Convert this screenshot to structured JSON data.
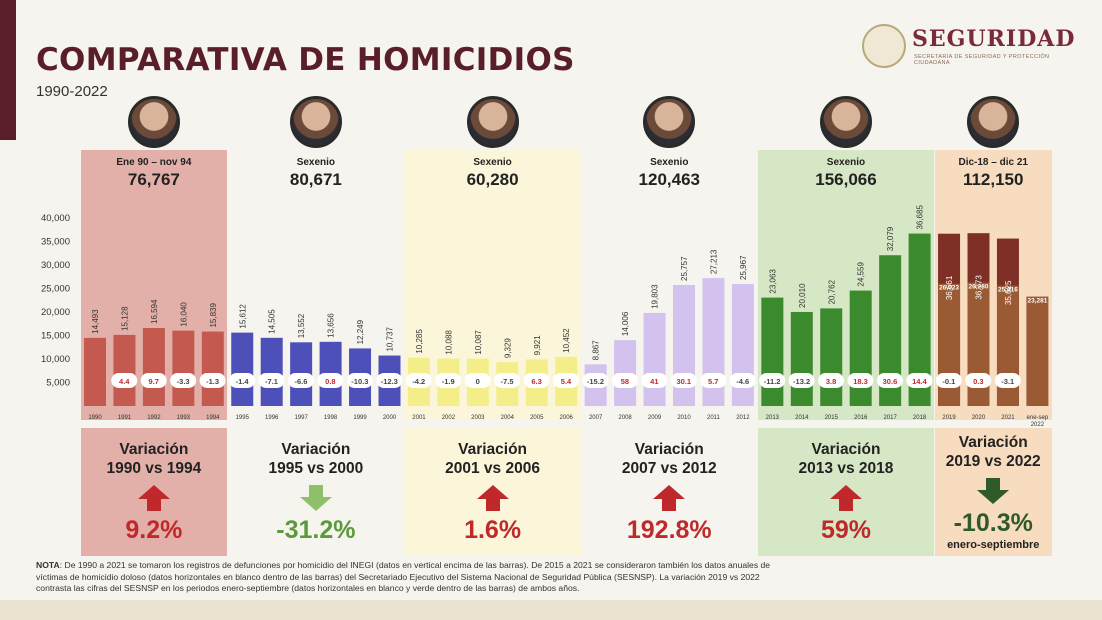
{
  "header": {
    "title": "COMPARATIVA DE HOMICIDIOS",
    "subtitle": "1990-2022",
    "logo_title": "SEGURIDAD",
    "logo_subtitle": "SECRETARÍA DE SEGURIDAD Y PROTECCIÓN CIUDADANA"
  },
  "periods": [
    {
      "label": "Ene 90 – nov 94",
      "total": "76,767",
      "variation_title_1": "Variación",
      "variation_title_2": "1990 vs 1994",
      "variation_value": "9.2%",
      "variation_direction": "up",
      "band_color": "#e2b0a8",
      "value_color": "#c0292b"
    },
    {
      "label": "Sexenio",
      "total": "80,671",
      "variation_title_1": "Variación",
      "variation_title_2": "1995 vs 2000",
      "variation_value": "-31.2%",
      "variation_direction": "down",
      "band_color": "#f6f4ee",
      "value_color": "#5a9a3a"
    },
    {
      "label": "Sexenio",
      "total": "60,280",
      "variation_title_1": "Variación",
      "variation_title_2": "2001 vs 2006",
      "variation_value": "1.6%",
      "variation_direction": "up",
      "band_color": "#fbf6d9",
      "value_color": "#c0292b"
    },
    {
      "label": "Sexenio",
      "total": "120,463",
      "variation_title_1": "Variación",
      "variation_title_2": "2007 vs 2012",
      "variation_value": "192.8%",
      "variation_direction": "up",
      "band_color": "#f6f4ee",
      "value_color": "#c0292b"
    },
    {
      "label": "Sexenio",
      "total": "156,066",
      "variation_title_1": "Variación",
      "variation_title_2": "2013 vs 2018",
      "variation_value": "59%",
      "variation_direction": "up",
      "band_color": "#d6e7c5",
      "value_color": "#c0292b"
    },
    {
      "label": "Dic-18 – dic 21",
      "total": "112,150",
      "variation_title_1": "Variación",
      "variation_title_2": "2019 vs 2022",
      "variation_value": "-10.3%",
      "variation_direction": "down",
      "variation_note": "enero-septiembre",
      "band_color": "#f8dcbf",
      "value_color": "#2f5a2a"
    }
  ],
  "chart_data": {
    "type": "bar",
    "y_ticks": [
      "40,000",
      "35,000",
      "30,000",
      "25,000",
      "20,000",
      "15,000",
      "10,000",
      "5,000"
    ],
    "ylim": [
      0,
      40000
    ],
    "categories": [
      "1990",
      "1991",
      "1992",
      "1993",
      "1994",
      "1995",
      "1996",
      "1997",
      "1998",
      "1999",
      "2000",
      "2001",
      "2002",
      "2003",
      "2004",
      "2005",
      "2006",
      "2007",
      "2008",
      "2009",
      "2010",
      "2011",
      "2012",
      "2013",
      "2014",
      "2015",
      "2016",
      "2017",
      "2018",
      "2019",
      "2020",
      "2021",
      "ene-sep 2022"
    ],
    "values": [
      14493,
      15128,
      16594,
      16040,
      15839,
      15612,
      14505,
      13552,
      13656,
      12249,
      10737,
      10285,
      10088,
      10087,
      9329,
      9921,
      10452,
      8867,
      14006,
      19803,
      25757,
      27213,
      25967,
      23063,
      20010,
      20762,
      24559,
      32079,
      36685,
      36661,
      36773,
      35625,
      null
    ],
    "value_labels": [
      "14,493",
      "15,128",
      "16,594",
      "16,040",
      "15,839",
      "15,612",
      "14,505",
      "13,552",
      "13,656",
      "12,249",
      "10,737",
      "10,285",
      "10,088",
      "10,087",
      "9,329",
      "9,921",
      "10,452",
      "8,867",
      "14,006",
      "19,803",
      "25,757",
      "27,213",
      "25,967",
      "23,063",
      "20,010",
      "20,762",
      "24,559",
      "32,079",
      "36,685",
      "36,661",
      "36,773",
      "35,625",
      ""
    ],
    "inner_labels": [
      null,
      null,
      null,
      null,
      null,
      null,
      null,
      null,
      null,
      null,
      null,
      null,
      null,
      null,
      null,
      null,
      null,
      null,
      null,
      null,
      null,
      null,
      null,
      null,
      null,
      null,
      null,
      null,
      null,
      "26,023",
      "26,280",
      "25,616",
      "23,281"
    ],
    "inner_values": [
      null,
      null,
      null,
      null,
      null,
      null,
      null,
      null,
      null,
      null,
      null,
      null,
      null,
      null,
      null,
      null,
      null,
      null,
      null,
      null,
      null,
      null,
      null,
      null,
      null,
      null,
      null,
      null,
      null,
      26023,
      26280,
      25616,
      23281
    ],
    "annual_variation": [
      "",
      "4.4",
      "9.7",
      "-3.3",
      "-1.3",
      "-1.4",
      "-7.1",
      "-6.6",
      "0.8",
      "-10.3",
      "-12.3",
      "-4.2",
      "-1.9",
      "0",
      "-7.5",
      "6.3",
      "5.4",
      "-15.2",
      "58",
      "41",
      "30.1",
      "5.7",
      "-4.6",
      "-11.2",
      "-13.2",
      "3.8",
      "18.3",
      "30.6",
      "14.4",
      "-0.1",
      "0.3",
      "-3.1",
      ""
    ],
    "annual_variation_color": [
      "",
      "red",
      "red",
      "green",
      "green",
      "green",
      "green",
      "green",
      "red",
      "green",
      "green",
      "green",
      "green",
      "green",
      "green",
      "red",
      "red",
      "green",
      "red",
      "red",
      "red",
      "red",
      "green",
      "green",
      "green",
      "red",
      "red",
      "red",
      "red",
      "green",
      "red",
      "green",
      ""
    ],
    "bar_colors": [
      "#c45a4f",
      "#c45a4f",
      "#c45a4f",
      "#c45a4f",
      "#c45a4f",
      "#4d50b8",
      "#4d50b8",
      "#4d50b8",
      "#4d50b8",
      "#4d50b8",
      "#4d50b8",
      "#f4ee8a",
      "#f4ee8a",
      "#f4ee8a",
      "#f4ee8a",
      "#f4ee8a",
      "#f4ee8a",
      "#d4c2ee",
      "#d4c2ee",
      "#d4c2ee",
      "#d4c2ee",
      "#d4c2ee",
      "#d4c2ee",
      "#3b8a2e",
      "#3b8a2e",
      "#3b8a2e",
      "#3b8a2e",
      "#3b8a2e",
      "#3b8a2e",
      "#7e2f26",
      "#7e2f26",
      "#7e2f26",
      "#9a5a34"
    ],
    "inner_color": "#9a5a34",
    "grid": false
  },
  "note": {
    "label": "NOTA",
    "text": ": De 1990 a 2021 se tomaron los registros de defunciones por homicidio del INEGI (datos en vertical encima de las barras). De 2015 a 2021 se consideraron también los datos anuales de víctimas de homicidio doloso (datos horizontales en blanco dentro de las barras) del Secretariado Ejecutivo del Sistema Nacional de Seguridad Pública (SESNSP). La variación 2019 vs 2022 contrasta las cifras del SESNSP en los periodos enero-septiembre (datos horizontales en blanco y verde dentro de las barras) de ambos años."
  },
  "colors": {
    "red": "#c0292b",
    "green_light": "#8ec06a",
    "green_dark": "#2f5a2a",
    "brand": "#5a1d2a"
  }
}
